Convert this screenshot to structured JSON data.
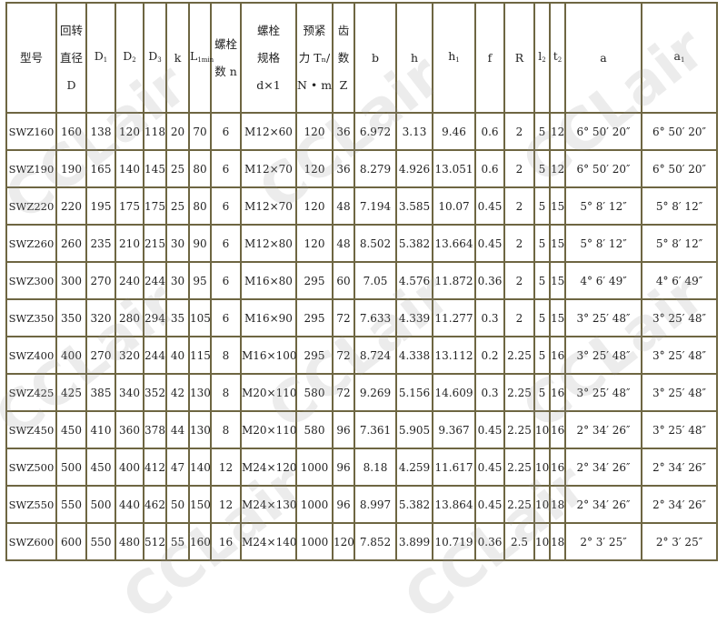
{
  "watermark": "CCLair",
  "colors": {
    "border": "#6e6642",
    "text": "#222222",
    "watermark": "#969696"
  },
  "headers": [
    {
      "lines": [
        "型号"
      ]
    },
    {
      "lines": [
        "回转",
        "直径",
        "D"
      ]
    },
    {
      "main": "D",
      "sub": "1"
    },
    {
      "main": "D",
      "sub": "2"
    },
    {
      "main": "D",
      "sub": "3"
    },
    {
      "lines": [
        "k"
      ]
    },
    {
      "main": "L",
      "sub": "1min"
    },
    {
      "lines": [
        "螺栓",
        "数 n"
      ]
    },
    {
      "lines": [
        "螺栓",
        "规格",
        "d×1"
      ]
    },
    {
      "lines": [
        "预紧",
        "力 Tₙ/",
        "N • m"
      ]
    },
    {
      "lines": [
        "齿",
        "数",
        "Z"
      ]
    },
    {
      "lines": [
        "b"
      ]
    },
    {
      "lines": [
        "h"
      ]
    },
    {
      "main": "h",
      "sub": "1"
    },
    {
      "lines": [
        "f"
      ]
    },
    {
      "lines": [
        "R"
      ]
    },
    {
      "main": "l",
      "sub": "2"
    },
    {
      "main": "t",
      "sub": "2"
    },
    {
      "lines": [
        "a"
      ]
    },
    {
      "main": "a",
      "sub": "1"
    }
  ],
  "rows": [
    [
      "SWZ160",
      "160",
      "138",
      "120",
      "118",
      "20",
      "70",
      "6",
      "M12×60",
      "120",
      "36",
      "6.972",
      "3.13",
      "9.46",
      "0.6",
      "2",
      "5",
      "12",
      "6° 50′ 20″",
      "6° 50′ 20″"
    ],
    [
      "SWZ190",
      "190",
      "165",
      "140",
      "145",
      "25",
      "80",
      "6",
      "M12×70",
      "120",
      "36",
      "8.279",
      "4.926",
      "13.051",
      "0.6",
      "2",
      "5",
      "12",
      "6° 50′ 20″",
      "6° 50′ 20″"
    ],
    [
      "SWZ220",
      "220",
      "195",
      "175",
      "175",
      "25",
      "80",
      "6",
      "M12×70",
      "120",
      "48",
      "7.194",
      "3.585",
      "10.07",
      "0.45",
      "2",
      "5",
      "15",
      "5° 8′ 12″",
      "5° 8′ 12″"
    ],
    [
      "SWZ260",
      "260",
      "235",
      "210",
      "215",
      "30",
      "90",
      "6",
      "M12×80",
      "120",
      "48",
      "8.502",
      "5.382",
      "13.664",
      "0.45",
      "2",
      "5",
      "15",
      "5° 8′ 12″",
      "5° 8′ 12″"
    ],
    [
      "SWZ300",
      "300",
      "270",
      "240",
      "244",
      "30",
      "95",
      "6",
      "M16×80",
      "295",
      "60",
      "7.05",
      "4.576",
      "11.872",
      "0.36",
      "2",
      "5",
      "15",
      "4° 6′ 49″",
      "4° 6′ 49″"
    ],
    [
      "SWZ350",
      "350",
      "320",
      "280",
      "294",
      "35",
      "105",
      "6",
      "M16×90",
      "295",
      "72",
      "7.633",
      "4.339",
      "11.277",
      "0.3",
      "2",
      "5",
      "15",
      "3° 25′ 48″",
      "3° 25′ 48″"
    ],
    [
      "SWZ400",
      "400",
      "270",
      "320",
      "244",
      "40",
      "115",
      "8",
      "M16×100",
      "295",
      "72",
      "8.724",
      "4.338",
      "13.112",
      "0.2",
      "2.25",
      "5",
      "16",
      "3° 25′ 48″",
      "3° 25′ 48″"
    ],
    [
      "SWZ425",
      "425",
      "385",
      "340",
      "352",
      "42",
      "130",
      "8",
      "M20×110",
      "580",
      "72",
      "9.269",
      "5.156",
      "14.609",
      "0.3",
      "2.25",
      "5",
      "16",
      "3° 25′ 48″",
      "3° 25′ 48″"
    ],
    [
      "SWZ450",
      "450",
      "410",
      "360",
      "378",
      "44",
      "130",
      "8",
      "M20×110",
      "580",
      "96",
      "7.361",
      "5.905",
      "9.367",
      "0.45",
      "2.25",
      "10",
      "16",
      "2° 34′ 26″",
      "3° 25′ 48″"
    ],
    [
      "SWZ500",
      "500",
      "450",
      "400",
      "412",
      "47",
      "140",
      "12",
      "M24×120",
      "1000",
      "96",
      "8.18",
      "4.259",
      "11.617",
      "0.45",
      "2.25",
      "10",
      "16",
      "2° 34′ 26″",
      "2° 34′ 26″"
    ],
    [
      "SWZ550",
      "550",
      "500",
      "440",
      "462",
      "50",
      "150",
      "12",
      "M24×130",
      "1000",
      "96",
      "8.997",
      "5.382",
      "13.864",
      "0.45",
      "2.25",
      "10",
      "18",
      "2° 34′ 26″",
      "2° 34′ 26″"
    ],
    [
      "SWZ600",
      "600",
      "550",
      "480",
      "512",
      "55",
      "160",
      "16",
      "M24×140",
      "1000",
      "120",
      "7.852",
      "3.899",
      "10.719",
      "0.36",
      "2.5",
      "10",
      "18",
      "2° 3′ 25″",
      "2° 3′ 25″"
    ]
  ]
}
